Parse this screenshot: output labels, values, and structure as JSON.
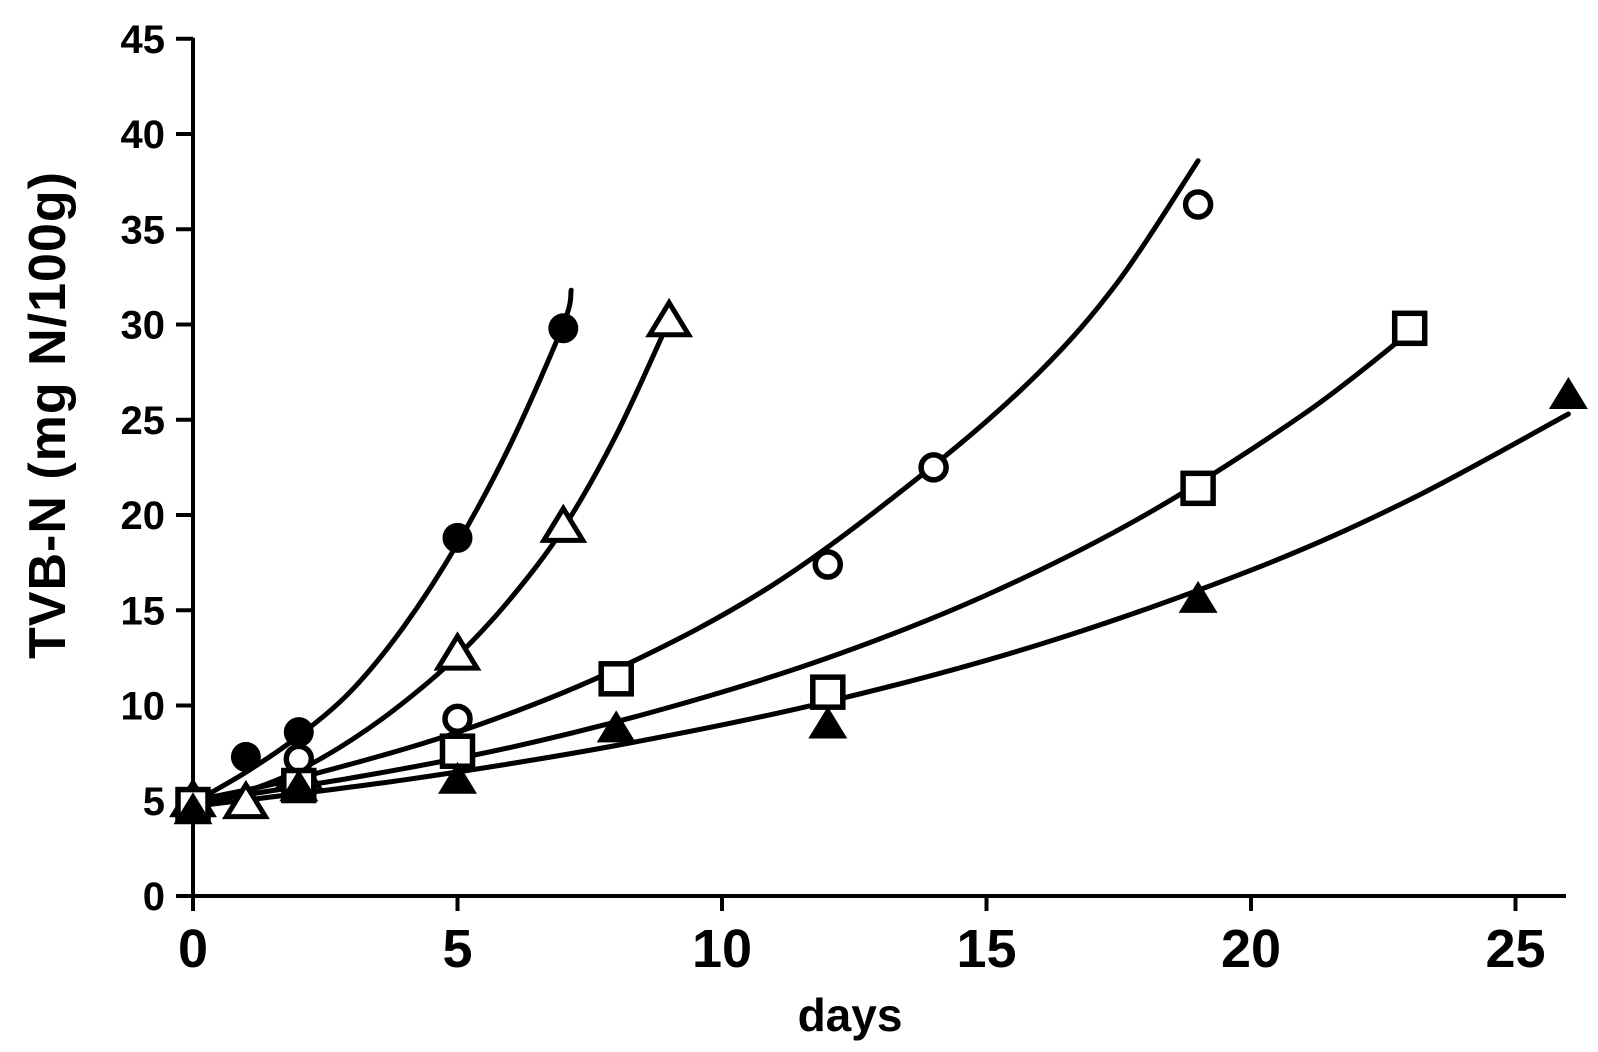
{
  "chart_data": {
    "type": "scatter",
    "title": "",
    "xlabel": "days",
    "ylabel": "TVB-N (mg N/100g)",
    "xlim": [
      0,
      26
    ],
    "ylim": [
      0,
      45
    ],
    "x_ticks": [
      0,
      5,
      10,
      15,
      20,
      25
    ],
    "y_ticks": [
      0,
      5,
      10,
      15,
      20,
      25,
      30,
      35,
      40,
      45
    ],
    "grid": false,
    "legend": "none",
    "colors": {
      "foreground": "#000000",
      "background": "#ffffff"
    },
    "series": [
      {
        "name": "filled-circle",
        "marker": "filled-circle",
        "points": [
          [
            0,
            5.0
          ],
          [
            1,
            7.3
          ],
          [
            2,
            8.6
          ],
          [
            5,
            18.8
          ],
          [
            7,
            29.8
          ]
        ],
        "curve": [
          [
            0,
            4.9
          ],
          [
            1,
            6.5
          ],
          [
            2,
            8.4
          ],
          [
            3,
            10.8
          ],
          [
            4,
            14.2
          ],
          [
            5,
            18.5
          ],
          [
            6,
            23.7
          ],
          [
            7,
            30.0
          ],
          [
            7.15,
            31.8
          ]
        ]
      },
      {
        "name": "open-triangle",
        "marker": "open-triangle",
        "points": [
          [
            0,
            5.0
          ],
          [
            1,
            4.9
          ],
          [
            2,
            6.5
          ],
          [
            5,
            12.7
          ],
          [
            7,
            19.4
          ],
          [
            9,
            30.2
          ]
        ],
        "curve": [
          [
            0,
            4.9
          ],
          [
            1,
            5.5
          ],
          [
            2,
            6.6
          ],
          [
            3,
            8.2
          ],
          [
            4,
            10.2
          ],
          [
            5,
            12.6
          ],
          [
            6,
            15.6
          ],
          [
            7,
            19.3
          ],
          [
            8,
            24.2
          ],
          [
            9,
            30.2
          ]
        ]
      },
      {
        "name": "open-circle",
        "marker": "open-circle",
        "points": [
          [
            0,
            4.9
          ],
          [
            2,
            7.2
          ],
          [
            5,
            9.3
          ],
          [
            8,
            11.5
          ],
          [
            12,
            17.4
          ],
          [
            14,
            22.5
          ],
          [
            19,
            36.3
          ]
        ],
        "curve": [
          [
            0,
            5.0
          ],
          [
            2,
            6.2
          ],
          [
            5,
            8.6
          ],
          [
            8,
            11.9
          ],
          [
            11,
            16.4
          ],
          [
            14,
            22.6
          ],
          [
            16,
            27.5
          ],
          [
            17.5,
            32.3
          ],
          [
            19,
            38.6
          ]
        ]
      },
      {
        "name": "open-square",
        "marker": "open-square",
        "points": [
          [
            0,
            4.8
          ],
          [
            2,
            5.8
          ],
          [
            5,
            7.6
          ],
          [
            8,
            11.4
          ],
          [
            12,
            10.7
          ],
          [
            19,
            21.4
          ],
          [
            23,
            29.8
          ]
        ],
        "curve": [
          [
            0,
            4.9
          ],
          [
            3,
            6.2
          ],
          [
            6,
            7.8
          ],
          [
            9,
            9.9
          ],
          [
            12,
            12.5
          ],
          [
            15,
            15.8
          ],
          [
            18,
            20.0
          ],
          [
            21,
            25.3
          ],
          [
            23,
            29.6
          ]
        ]
      },
      {
        "name": "filled-triangle",
        "marker": "filled-triangle",
        "points": [
          [
            0,
            4.5
          ],
          [
            2,
            5.7
          ],
          [
            5,
            6.1
          ],
          [
            8,
            8.8
          ],
          [
            12,
            9.0
          ],
          [
            19,
            15.6
          ],
          [
            26,
            26.3
          ]
        ],
        "curve": [
          [
            0,
            4.7
          ],
          [
            4,
            6.1
          ],
          [
            8,
            7.9
          ],
          [
            12,
            10.2
          ],
          [
            16,
            13.2
          ],
          [
            20,
            17.1
          ],
          [
            23,
            20.8
          ],
          [
            26,
            25.3
          ]
        ]
      }
    ]
  }
}
